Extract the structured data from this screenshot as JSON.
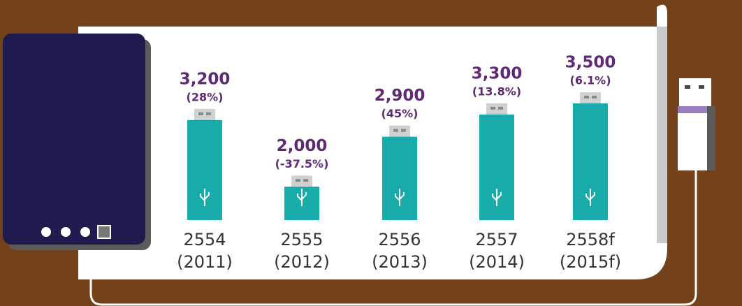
{
  "chart_data": {
    "type": "bar",
    "categories": [
      [
        "2554",
        "(2011)"
      ],
      [
        "2555",
        "(2012)"
      ],
      [
        "2556",
        "(2013)"
      ],
      [
        "2557",
        "(2014)"
      ],
      [
        "2558f",
        "(2015f)"
      ]
    ],
    "values": [
      3200,
      2000,
      2900,
      3300,
      3500
    ],
    "value_labels": [
      "3,200",
      "2,000",
      "2,900",
      "3,300",
      "3,500"
    ],
    "annotations": [
      "(28%)",
      "(-37.5%)",
      "(45%)",
      "(13.8%)",
      "(6.1%)"
    ],
    "color": "#17aba9",
    "ylim": [
      1400,
      3600
    ]
  }
}
